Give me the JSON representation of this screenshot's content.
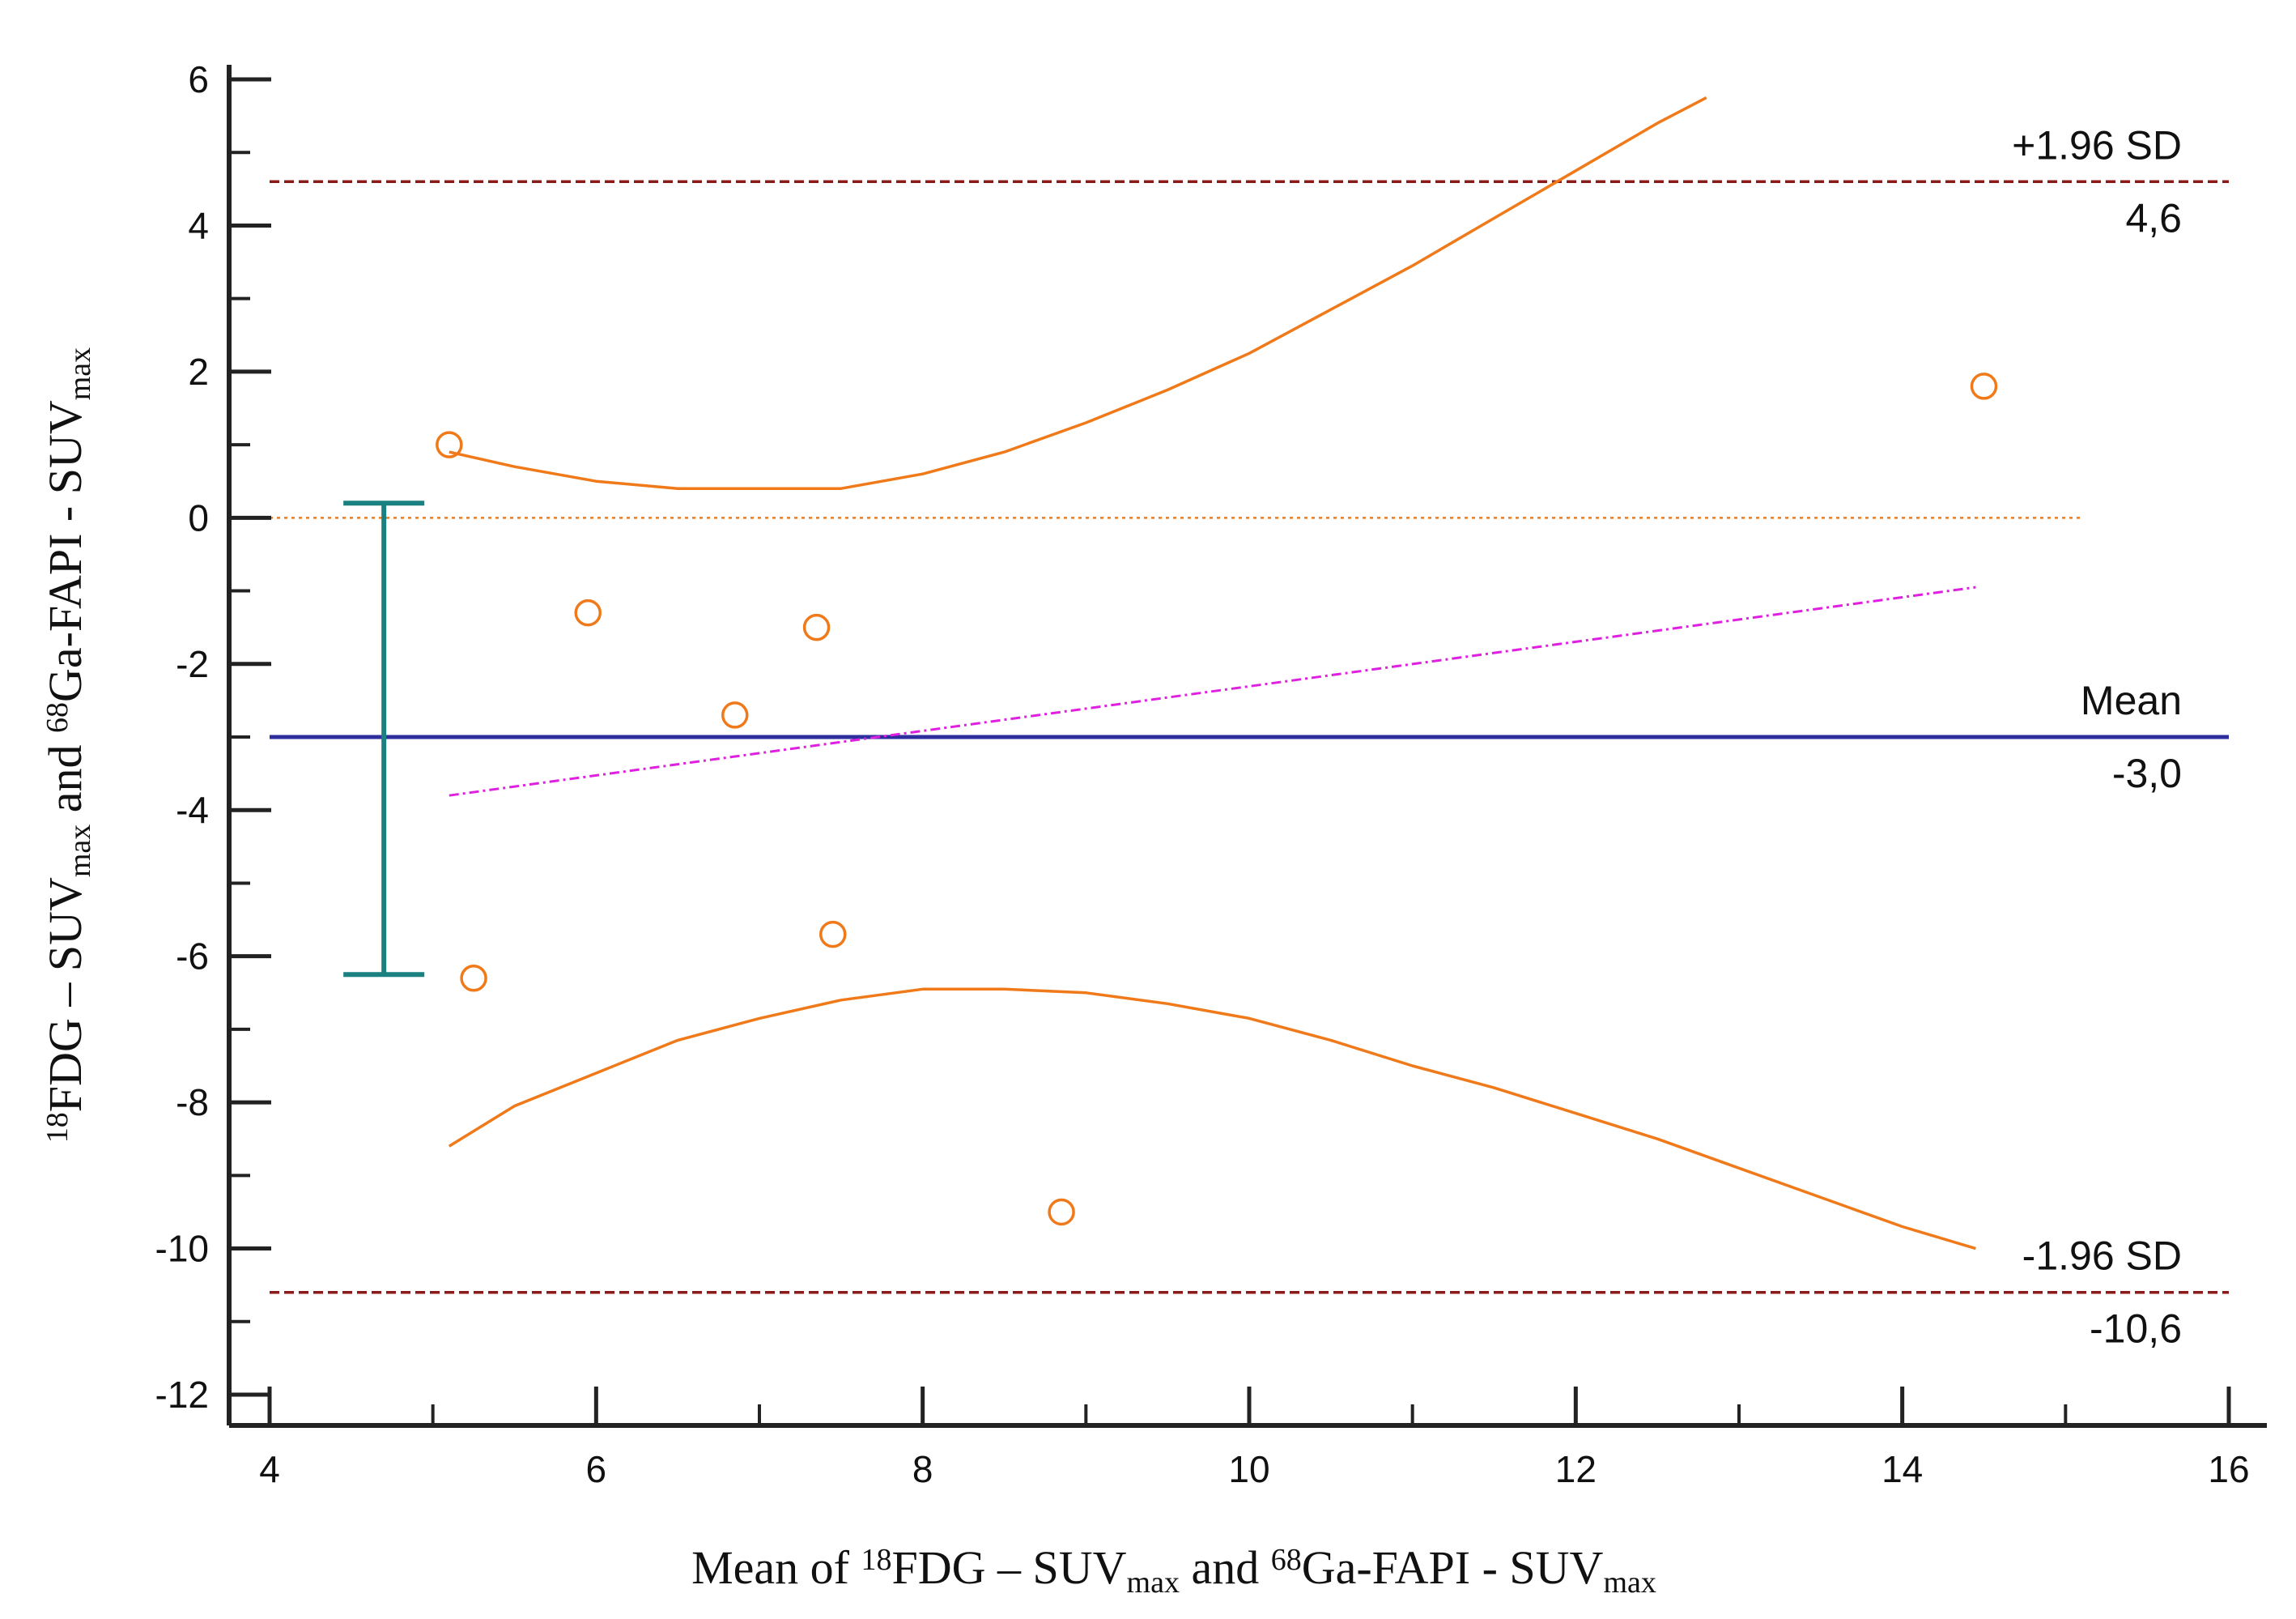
{
  "chart_data": {
    "type": "scatter",
    "title": "",
    "xlabel": {
      "parts": [
        {
          "t": "Mean of ",
          "s": "n"
        },
        {
          "t": "18",
          "s": "sup"
        },
        {
          "t": "FDG – SUV",
          "s": "n"
        },
        {
          "t": "max",
          "s": "sub"
        },
        {
          "t": "  and ",
          "s": "n"
        },
        {
          "t": "68",
          "s": "sup"
        },
        {
          "t": "Ga-FAPI - SUV",
          "s": "n"
        },
        {
          "t": "max",
          "s": "sub"
        }
      ]
    },
    "ylabel": {
      "parts": [
        {
          "t": "18",
          "s": "sup"
        },
        {
          "t": "FDG – SUV",
          "s": "n"
        },
        {
          "t": "max",
          "s": "sub"
        },
        {
          "t": " and ",
          "s": "n"
        },
        {
          "t": "68",
          "s": "sup"
        },
        {
          "t": "Ga-FAPI - SUV",
          "s": "n"
        },
        {
          "t": "max",
          "s": "sub"
        }
      ]
    },
    "xlim": [
      4,
      16
    ],
    "ylim": [
      -12,
      6
    ],
    "x_ticks": [
      4,
      6,
      8,
      10,
      12,
      14,
      16
    ],
    "x_minor_ticks": [
      5,
      7,
      9,
      11,
      13,
      15
    ],
    "y_ticks": [
      6,
      4,
      2,
      0,
      -2,
      -4,
      -6,
      -8,
      -10,
      -12
    ],
    "y_minor_ticks": [
      5,
      3,
      1,
      -1,
      -3,
      -5,
      -7,
      -9,
      -11
    ],
    "points": [
      {
        "x": 5.1,
        "y": 1.0
      },
      {
        "x": 5.25,
        "y": -6.3
      },
      {
        "x": 5.95,
        "y": -1.3
      },
      {
        "x": 6.85,
        "y": -2.7
      },
      {
        "x": 7.35,
        "y": -1.5
      },
      {
        "x": 7.45,
        "y": -5.7
      },
      {
        "x": 8.85,
        "y": -9.5
      },
      {
        "x": 14.5,
        "y": 1.8
      }
    ],
    "reference_lines": [
      {
        "name": "upper-loa",
        "value": 4.6,
        "label_top": "+1.96 SD",
        "label_bottom": "4,6",
        "color": "#8b1a1a",
        "style": "dashed"
      },
      {
        "name": "mean",
        "value": -3.0,
        "label_top": "Mean",
        "label_bottom": "-3,0",
        "color": "#2e2e9e",
        "style": "solid"
      },
      {
        "name": "lower-loa",
        "value": -10.6,
        "label_top": "-1.96 SD",
        "label_bottom": "-10,6",
        "color": "#8b1a1a",
        "style": "dashed"
      },
      {
        "name": "zero",
        "value": 0,
        "color": "#f07a1a",
        "style": "dotted"
      }
    ],
    "regression_line": {
      "x": [
        5.1,
        14.45
      ],
      "y": [
        -3.8,
        -0.95
      ],
      "color": "#e020e0",
      "style": "dash-dot"
    },
    "confidence_curves": {
      "color": "#f07a1a",
      "upper": {
        "x": [
          5.1,
          5.5,
          6.0,
          6.5,
          7.0,
          7.5,
          8.0,
          8.5,
          9.0,
          9.5,
          10.0,
          10.5,
          11.0,
          11.5,
          12.0,
          12.5,
          12.8
        ],
        "y": [
          0.9,
          0.7,
          0.5,
          0.4,
          0.4,
          0.4,
          0.6,
          0.9,
          1.3,
          1.75,
          2.25,
          2.85,
          3.45,
          4.1,
          4.75,
          5.4,
          5.75
        ]
      },
      "lower": {
        "x": [
          5.1,
          5.5,
          6.0,
          6.5,
          7.0,
          7.5,
          8.0,
          8.5,
          9.0,
          9.5,
          10.0,
          10.5,
          11.0,
          11.5,
          12.0,
          12.5,
          13.0,
          13.5,
          14.0,
          14.45
        ],
        "y": [
          -8.6,
          -8.05,
          -7.6,
          -7.15,
          -6.85,
          -6.6,
          -6.45,
          -6.45,
          -6.5,
          -6.65,
          -6.85,
          -7.15,
          -7.5,
          -7.8,
          -8.15,
          -8.5,
          -8.9,
          -9.3,
          -9.7,
          -10.0
        ]
      }
    },
    "mean_ci_bar": {
      "x": 4.7,
      "low": -6.25,
      "high": 0.2,
      "color": "#1a8080"
    }
  }
}
